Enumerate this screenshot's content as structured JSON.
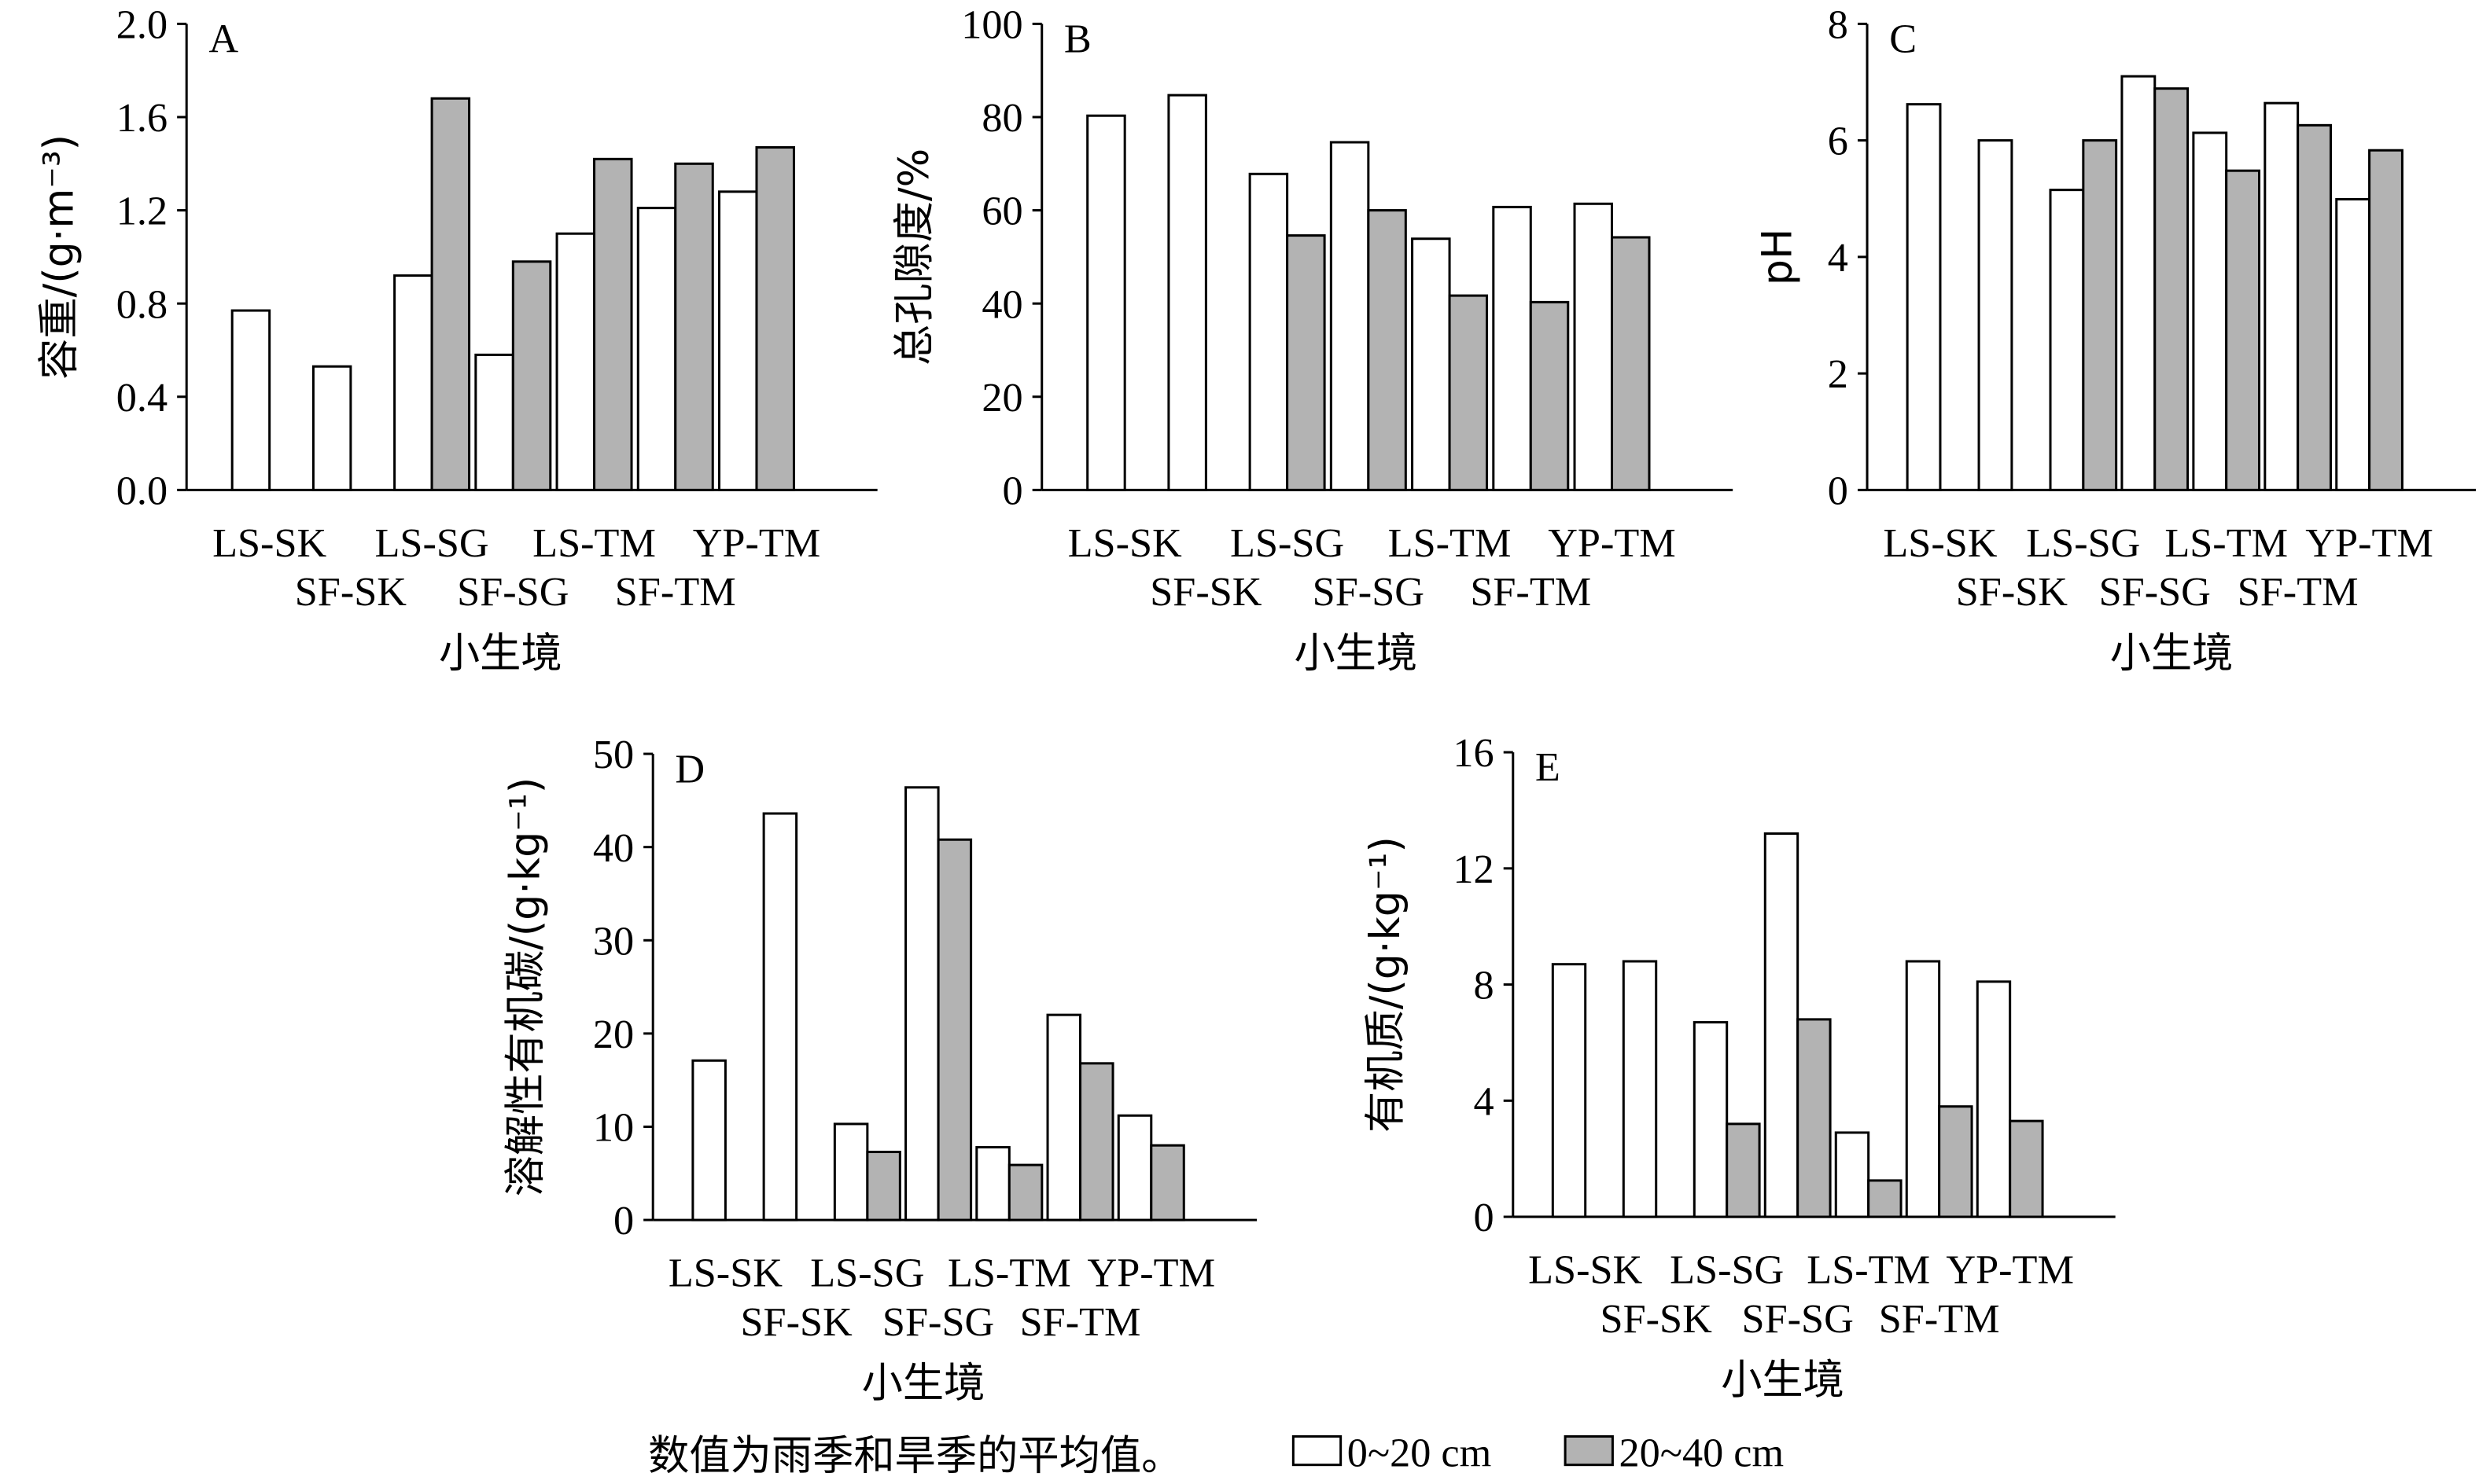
{
  "chart_data": [
    {
      "id": "A",
      "type": "bar",
      "panel_label": "A",
      "ylabel": "容重/(g·m⁻³)",
      "xlabel": "小生境",
      "ylim": [
        0,
        2.0
      ],
      "yticks": [
        "0.0",
        "0.4",
        "0.8",
        "1.2",
        "1.6",
        "2.0"
      ],
      "categories": [
        "LS-SK",
        "SF-SK",
        "LS-SG",
        "SF-SG",
        "LS-TM",
        "SF-TM",
        "YP-TM"
      ],
      "series": [
        {
          "name": "0~20 cm",
          "values": [
            0.77,
            0.53,
            0.92,
            0.58,
            1.1,
            1.21,
            1.28
          ]
        },
        {
          "name": "20~40 cm",
          "values": [
            null,
            null,
            1.68,
            0.98,
            1.42,
            1.4,
            1.47
          ]
        }
      ]
    },
    {
      "id": "B",
      "type": "bar",
      "panel_label": "B",
      "ylabel": "总孔隙度/%",
      "xlabel": "小生境",
      "ylim": [
        0,
        100
      ],
      "yticks": [
        "0",
        "20",
        "40",
        "60",
        "80",
        "100"
      ],
      "categories": [
        "LS-SK",
        "SF-SK",
        "LS-SG",
        "SF-SG",
        "LS-TM",
        "SF-TM",
        "YP-TM"
      ],
      "series": [
        {
          "name": "0~20 cm",
          "values": [
            80.3,
            84.7,
            67.8,
            74.6,
            53.9,
            60.7,
            61.4
          ]
        },
        {
          "name": "20~40 cm",
          "values": [
            null,
            null,
            54.6,
            60.0,
            41.7,
            40.3,
            54.2
          ]
        }
      ]
    },
    {
      "id": "C",
      "type": "bar",
      "panel_label": "C",
      "ylabel": "pH",
      "xlabel": "小生境",
      "ylim": [
        0,
        8
      ],
      "yticks": [
        "0",
        "2",
        "4",
        "6",
        "8"
      ],
      "categories": [
        "LS-SK",
        "SF-SK",
        "LS-SG",
        "SF-SG",
        "LS-TM",
        "SF-TM",
        "YP-TM"
      ],
      "series": [
        {
          "name": "0~20 cm",
          "values": [
            6.62,
            6.0,
            5.15,
            7.1,
            6.13,
            6.64,
            4.99
          ]
        },
        {
          "name": "20~40 cm",
          "values": [
            null,
            null,
            6.0,
            6.89,
            5.48,
            6.26,
            5.83
          ]
        }
      ]
    },
    {
      "id": "D",
      "type": "bar",
      "panel_label": "D",
      "ylabel": "溶解性有机碳/(g·kg⁻¹)",
      "xlabel": "小生境",
      "ylim": [
        0,
        50
      ],
      "yticks": [
        "0",
        "10",
        "20",
        "30",
        "40",
        "50"
      ],
      "categories": [
        "LS-SK",
        "SF-SK",
        "LS-SG",
        "SF-SG",
        "LS-TM",
        "SF-TM",
        "YP-TM"
      ],
      "series": [
        {
          "name": "0~20 cm",
          "values": [
            17.1,
            43.6,
            10.3,
            46.4,
            7.8,
            22.0,
            11.2
          ]
        },
        {
          "name": "20~40 cm",
          "values": [
            null,
            null,
            7.3,
            40.8,
            5.9,
            16.8,
            8.0
          ]
        }
      ]
    },
    {
      "id": "E",
      "type": "bar",
      "panel_label": "E",
      "ylabel": "有机质/(g·kg⁻¹)",
      "xlabel": "小生境",
      "ylim": [
        0,
        16
      ],
      "yticks": [
        "0",
        "4",
        "8",
        "12",
        "16"
      ],
      "categories": [
        "LS-SK",
        "SF-SK",
        "LS-SG",
        "SF-SG",
        "LS-TM",
        "SF-TM",
        "YP-TM"
      ],
      "series": [
        {
          "name": "0~20 cm",
          "values": [
            8.7,
            8.8,
            6.7,
            13.2,
            2.9,
            8.8,
            8.1
          ]
        },
        {
          "name": "20~40 cm",
          "values": [
            null,
            null,
            3.2,
            6.8,
            1.25,
            3.8,
            3.3
          ]
        }
      ]
    }
  ],
  "legend": {
    "note": "数值为雨季和旱季的平均值。",
    "items": [
      "0~20 cm",
      "20~40 cm"
    ]
  },
  "colors": {
    "series1": "#ffffff",
    "series2": "#b3b3b3",
    "stroke": "#000000"
  }
}
